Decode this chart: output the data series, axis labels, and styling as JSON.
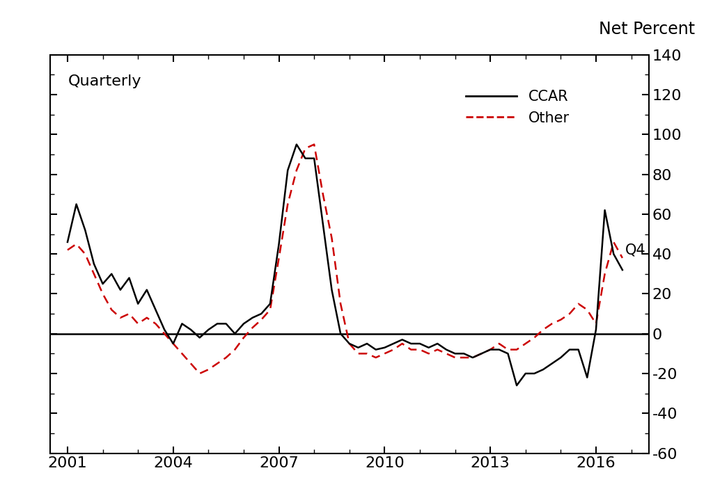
{
  "title": "Net Percent",
  "label_quarterly": "Quarterly",
  "label_q4": "Q4",
  "legend_ccar": "CCAR",
  "legend_other": "Other",
  "ylim": [
    -60,
    140
  ],
  "yticks": [
    -60,
    -40,
    -20,
    0,
    20,
    40,
    60,
    80,
    100,
    120,
    140
  ],
  "xlim_start": 2000.5,
  "xlim_end": 2017.5,
  "xticks": [
    2001,
    2004,
    2007,
    2010,
    2013,
    2016
  ],
  "background_color": "#ffffff",
  "line_color_ccar": "#000000",
  "line_color_other": "#cc0000",
  "ccar_x": [
    2001.0,
    2001.25,
    2001.5,
    2001.75,
    2002.0,
    2002.25,
    2002.5,
    2002.75,
    2003.0,
    2003.25,
    2003.5,
    2003.75,
    2004.0,
    2004.25,
    2004.5,
    2004.75,
    2005.0,
    2005.25,
    2005.5,
    2005.75,
    2006.0,
    2006.25,
    2006.5,
    2006.75,
    2007.0,
    2007.25,
    2007.5,
    2007.75,
    2008.0,
    2008.25,
    2008.5,
    2008.75,
    2009.0,
    2009.25,
    2009.5,
    2009.75,
    2010.0,
    2010.25,
    2010.5,
    2010.75,
    2011.0,
    2011.25,
    2011.5,
    2011.75,
    2012.0,
    2012.25,
    2012.5,
    2012.75,
    2013.0,
    2013.25,
    2013.5,
    2013.75,
    2014.0,
    2014.25,
    2014.5,
    2014.75,
    2015.0,
    2015.25,
    2015.5,
    2015.75,
    2016.0,
    2016.25,
    2016.5,
    2016.75
  ],
  "ccar_y": [
    46,
    65,
    52,
    35,
    25,
    30,
    22,
    28,
    15,
    22,
    12,
    2,
    -5,
    5,
    2,
    -2,
    2,
    5,
    5,
    0,
    5,
    8,
    10,
    15,
    45,
    82,
    95,
    88,
    88,
    55,
    22,
    0,
    -5,
    -7,
    -5,
    -8,
    -7,
    -5,
    -3,
    -5,
    -5,
    -7,
    -5,
    -8,
    -10,
    -10,
    -12,
    -10,
    -8,
    -8,
    -10,
    -26,
    -20,
    -20,
    -18,
    -15,
    -12,
    -8,
    -8,
    -22,
    2,
    62,
    40,
    32
  ],
  "other_x": [
    2001.0,
    2001.25,
    2001.5,
    2001.75,
    2002.0,
    2002.25,
    2002.5,
    2002.75,
    2003.0,
    2003.25,
    2003.5,
    2003.75,
    2004.0,
    2004.25,
    2004.5,
    2004.75,
    2005.0,
    2005.25,
    2005.5,
    2005.75,
    2006.0,
    2006.25,
    2006.5,
    2006.75,
    2007.0,
    2007.25,
    2007.5,
    2007.75,
    2008.0,
    2008.25,
    2008.5,
    2008.75,
    2009.0,
    2009.25,
    2009.5,
    2009.75,
    2010.0,
    2010.25,
    2010.5,
    2010.75,
    2011.0,
    2011.25,
    2011.5,
    2011.75,
    2012.0,
    2012.25,
    2012.5,
    2012.75,
    2013.0,
    2013.25,
    2013.5,
    2013.75,
    2014.0,
    2014.25,
    2014.5,
    2014.75,
    2015.0,
    2015.25,
    2015.5,
    2015.75,
    2016.0,
    2016.25,
    2016.5,
    2016.75
  ],
  "other_y": [
    42,
    45,
    40,
    30,
    20,
    12,
    8,
    10,
    5,
    8,
    5,
    0,
    -5,
    -10,
    -15,
    -20,
    -18,
    -15,
    -12,
    -8,
    -2,
    3,
    7,
    12,
    38,
    65,
    82,
    93,
    95,
    70,
    48,
    15,
    -5,
    -10,
    -10,
    -12,
    -10,
    -8,
    -5,
    -8,
    -8,
    -10,
    -8,
    -10,
    -12,
    -12,
    -12,
    -10,
    -8,
    -5,
    -8,
    -8,
    -5,
    -2,
    2,
    5,
    7,
    10,
    15,
    12,
    5,
    30,
    46,
    38
  ]
}
